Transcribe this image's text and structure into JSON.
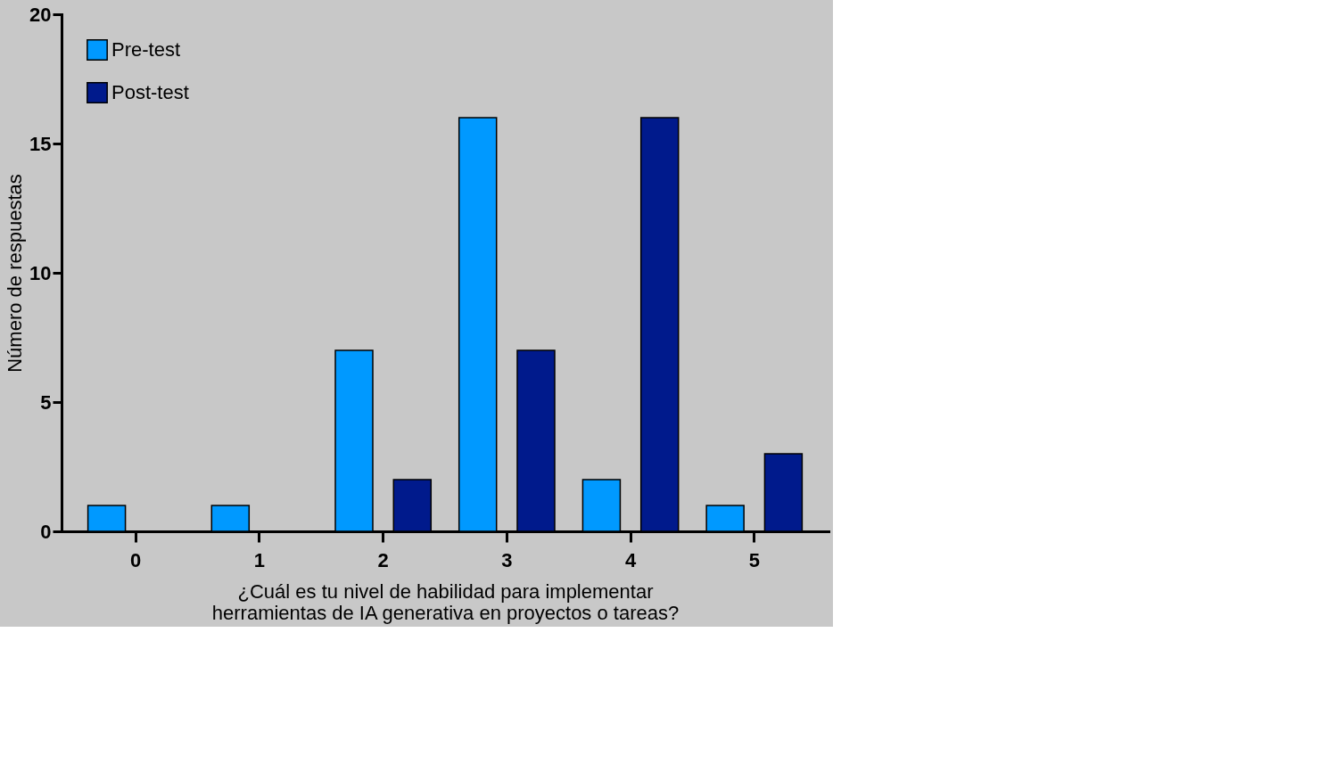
{
  "chart_data": {
    "type": "bar",
    "xlabel": "¿Cuál es tu nivel de habilidad para implementar\nherramientas de IA generativa en proyectos o tareas?",
    "ylabel": "Número de respuestas",
    "categories": [
      "0",
      "1",
      "2",
      "3",
      "4",
      "5"
    ],
    "series": [
      {
        "name": "Pre-test",
        "color": "#0099ff",
        "values": [
          1,
          1,
          7,
          16,
          2,
          1
        ]
      },
      {
        "name": "Post-test",
        "color": "#001a8c",
        "values": [
          0,
          0,
          2,
          7,
          16,
          3
        ]
      }
    ],
    "ylim": [
      0,
      20
    ],
    "yticks": [
      0,
      5,
      10,
      15,
      20
    ],
    "grid": false,
    "legend": "top left"
  }
}
